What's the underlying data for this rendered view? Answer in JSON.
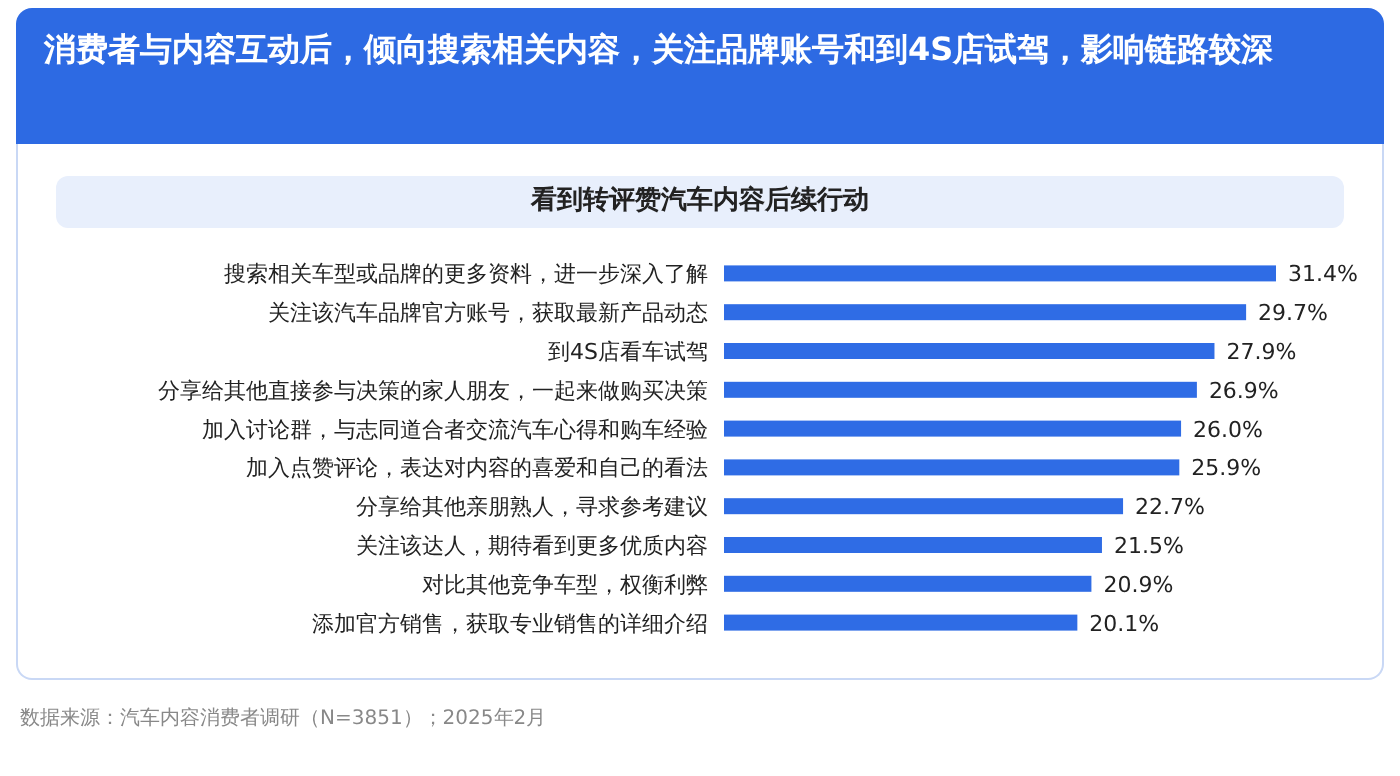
{
  "chart_data": {
    "type": "bar",
    "orientation": "horizontal",
    "title": "消费者与内容互动后，倾向搜索相关内容，关注品牌账号和到4S店试驾，影响链路较深",
    "subtitle": "看到转评赞汽车内容后续行动",
    "categories": [
      "搜索相关车型或品牌的更多资料，进一步深入了解",
      "关注该汽车品牌官方账号，获取最新产品动态",
      "到4S店看车试驾",
      "分享给其他直接参与决策的家人朋友，一起来做购买决策",
      "加入讨论群，与志同道合者交流汽车心得和购车经验",
      "加入点赞评论，表达对内容的喜爱和自己的看法",
      "分享给其他亲朋熟人，寻求参考建议",
      "关注该达人，期待看到更多优质内容",
      "对比其他竞争车型，权衡利弊",
      "添加官方销售，获取专业销售的详细介绍"
    ],
    "values": [
      31.4,
      29.7,
      27.9,
      26.9,
      26.0,
      25.9,
      22.7,
      21.5,
      20.9,
      20.1
    ],
    "value_labels": [
      "31.4%",
      "29.7%",
      "27.9%",
      "26.9%",
      "26.0%",
      "25.9%",
      "22.7%",
      "21.5%",
      "20.9%",
      "20.1%"
    ],
    "color": "#2f6ce5",
    "annotations": [
      "数据来源：汽车内容消费者调研（N=3851）；2025年2月"
    ]
  }
}
